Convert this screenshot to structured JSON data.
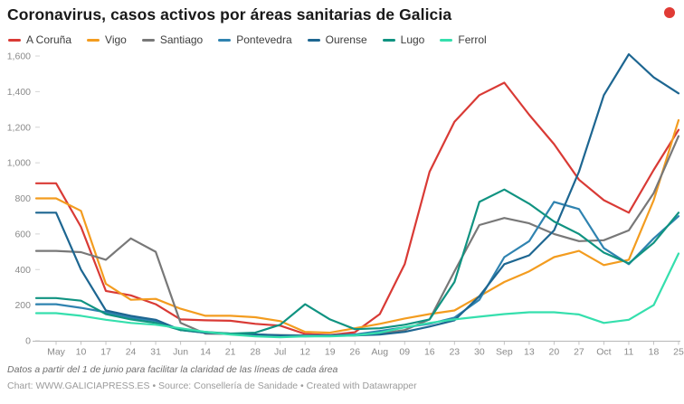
{
  "header": {
    "title": "Coronavirus, casos activos por áreas sanitarias de Galicia",
    "logo_color": "#e03b35"
  },
  "footer": {
    "note": "Datos a partir del 1 de junio para facilitar la claridad de las líneas de cada área",
    "credit": "Chart: WWW.GALICIAPRESS.ES • Source: Consellería de Sanidade • Created with Datawrapper"
  },
  "chart_data": {
    "type": "line",
    "title": "Coronavirus, casos activos por áreas sanitarias de Galicia",
    "xlabel": "",
    "ylabel": "",
    "ylim": [
      0,
      1600
    ],
    "grid": false,
    "legend_position": "top",
    "categories": [
      "May",
      "10",
      "17",
      "24",
      "31",
      "Jun",
      "14",
      "21",
      "28",
      "Jul",
      "12",
      "19",
      "26",
      "Aug",
      "09",
      "16",
      "23",
      "30",
      "Sep",
      "13",
      "20",
      "27",
      "Oct",
      "11",
      "18",
      "25"
    ],
    "y_tick_labels": [
      "0",
      "200",
      "400",
      "600",
      "800",
      "1,000",
      "1,200",
      "1,400",
      "1,600"
    ],
    "y_tick_values": [
      0,
      200,
      400,
      600,
      800,
      1000,
      1200,
      1400,
      1600
    ],
    "series": [
      {
        "name": "A Coruña",
        "color": "#d93a35",
        "values": [
          885,
          640,
          280,
          255,
          205,
          120,
          115,
          112,
          95,
          85,
          38,
          32,
          48,
          150,
          430,
          950,
          1230,
          1380,
          1450,
          1270,
          1105,
          905,
          790,
          720,
          960,
          1185
        ]
      },
      {
        "name": "Vigo",
        "color": "#f39c1f",
        "values": [
          800,
          730,
          320,
          230,
          235,
          180,
          140,
          140,
          132,
          110,
          50,
          45,
          70,
          95,
          125,
          150,
          170,
          250,
          330,
          390,
          470,
          505,
          425,
          455,
          790,
          1240
        ]
      },
      {
        "name": "Santiago",
        "color": "#787878",
        "values": [
          505,
          498,
          455,
          575,
          500,
          100,
          40,
          38,
          35,
          32,
          30,
          30,
          32,
          40,
          60,
          120,
          390,
          650,
          690,
          660,
          600,
          560,
          565,
          620,
          830,
          1150
        ]
      },
      {
        "name": "Pontevedra",
        "color": "#2f83b0",
        "values": [
          205,
          185,
          160,
          130,
          110,
          60,
          45,
          40,
          35,
          30,
          28,
          30,
          35,
          55,
          75,
          95,
          130,
          230,
          470,
          560,
          780,
          740,
          520,
          430,
          575,
          700
        ]
      },
      {
        "name": "Ourense",
        "color": "#1d6691",
        "values": [
          720,
          400,
          170,
          140,
          118,
          60,
          45,
          40,
          35,
          30,
          25,
          28,
          30,
          35,
          50,
          80,
          115,
          250,
          430,
          480,
          620,
          950,
          1380,
          1610,
          1480,
          1390
        ]
      },
      {
        "name": "Lugo",
        "color": "#109381",
        "values": [
          240,
          225,
          150,
          120,
          100,
          60,
          50,
          40,
          45,
          90,
          205,
          120,
          65,
          70,
          90,
          120,
          330,
          780,
          850,
          770,
          670,
          600,
          495,
          435,
          550,
          720
        ]
      },
      {
        "name": "Ferrol",
        "color": "#35dfad",
        "values": [
          155,
          140,
          118,
          100,
          90,
          70,
          50,
          35,
          25,
          20,
          25,
          25,
          30,
          45,
          75,
          100,
          120,
          135,
          150,
          160,
          160,
          148,
          100,
          118,
          200,
          490
        ]
      }
    ]
  }
}
